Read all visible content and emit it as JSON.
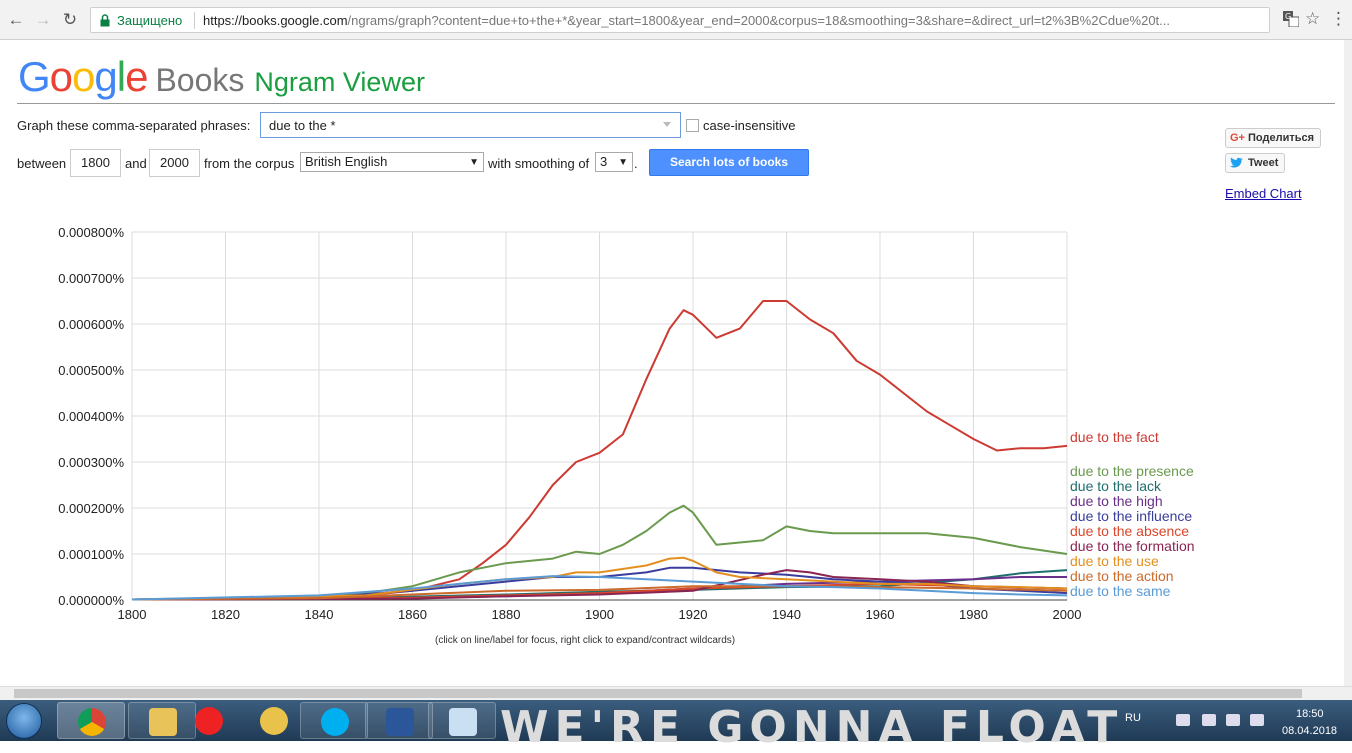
{
  "browser": {
    "secure_label": "Защищено",
    "url_host": "https://books.google.com",
    "url_rest": "/ngrams/graph?content=due+to+the+*&year_start=1800&year_end=2000&corpus=18&smoothing=3&share=&direct_url=t2%3B%2Cdue%20t..."
  },
  "header": {
    "logo_google": "Google",
    "logo_books": "Books",
    "app_name": "Ngram Viewer"
  },
  "form": {
    "phrases_label": "Graph these comma-separated phrases:",
    "phrases_value": "due to the *",
    "case_label": "case-insensitive",
    "between_label": "between",
    "year_start": "1800",
    "and_label": "and",
    "year_end": "2000",
    "corpus_label": "from the corpus",
    "corpus_value": "British English",
    "smoothing_label": "with smoothing of",
    "smoothing_value": "3",
    "period": ".",
    "search_button": "Search lots of books"
  },
  "share": {
    "gplus_label": "Поделиться",
    "tweet_label": "Tweet",
    "embed_label": "Embed Chart"
  },
  "chart_note": "(click on line/label for focus, right click to expand/contract wildcards)",
  "chart_data": {
    "type": "line",
    "title": "",
    "xlabel": "",
    "ylabel": "",
    "xlim": [
      1800,
      2000
    ],
    "ylim": [
      0,
      0.0008
    ],
    "y_unit": "%",
    "x_ticks": [
      "1800",
      "1820",
      "1840",
      "1860",
      "1880",
      "1900",
      "1920",
      "1940",
      "1960",
      "1980",
      "2000"
    ],
    "y_ticks": [
      "0.000000%",
      "0.000100%",
      "0.000200%",
      "0.000300%",
      "0.000400%",
      "0.000500%",
      "0.000600%",
      "0.000700%",
      "0.000800%"
    ],
    "grid": true,
    "legend_placement": "right, at line ends",
    "series": [
      {
        "name": "due to the fact",
        "color": "#cc3a32",
        "x": [
          1800,
          1820,
          1840,
          1850,
          1860,
          1870,
          1875,
          1880,
          1885,
          1890,
          1895,
          1900,
          1905,
          1910,
          1915,
          1918,
          1920,
          1925,
          1930,
          1935,
          1940,
          1945,
          1950,
          1955,
          1960,
          1965,
          1970,
          1975,
          1980,
          1985,
          1990,
          1995,
          2000
        ],
        "y": [
          1e-06,
          2e-06,
          5e-06,
          1e-05,
          2e-05,
          4.5e-05,
          8e-05,
          0.00012,
          0.00018,
          0.00025,
          0.0003,
          0.00032,
          0.00036,
          0.00048,
          0.00059,
          0.00063,
          0.00062,
          0.00057,
          0.00059,
          0.00065,
          0.00065,
          0.00061,
          0.00058,
          0.00052,
          0.00049,
          0.00045,
          0.00041,
          0.00038,
          0.00035,
          0.000325,
          0.00033,
          0.00033,
          0.000335
        ]
      },
      {
        "name": "due to the presence",
        "color": "#6a9a4e",
        "x": [
          1800,
          1840,
          1850,
          1860,
          1870,
          1880,
          1890,
          1895,
          1900,
          1905,
          1910,
          1915,
          1918,
          1920,
          1925,
          1930,
          1935,
          1940,
          1945,
          1950,
          1960,
          1970,
          1980,
          1990,
          2000
        ],
        "y": [
          1e-06,
          5e-06,
          1.5e-05,
          3e-05,
          6e-05,
          8e-05,
          9e-05,
          0.000105,
          0.0001,
          0.00012,
          0.00015,
          0.00019,
          0.000205,
          0.00019,
          0.00012,
          0.000125,
          0.00013,
          0.00016,
          0.00015,
          0.000145,
          0.000145,
          0.000145,
          0.000135,
          0.000115,
          0.0001
        ]
      },
      {
        "name": "due to the lack",
        "color": "#1f6e6e",
        "x": [
          1800,
          1850,
          1880,
          1900,
          1920,
          1940,
          1960,
          1980,
          1990,
          2000
        ],
        "y": [
          1e-06,
          5e-06,
          1.2e-05,
          1.8e-05,
          2.2e-05,
          2.8e-05,
          3e-05,
          4.5e-05,
          5.8e-05,
          6.5e-05
        ]
      },
      {
        "name": "due to the high",
        "color": "#6a2f8a",
        "x": [
          1800,
          1850,
          1880,
          1900,
          1920,
          1940,
          1960,
          1980,
          1990,
          2000
        ],
        "y": [
          1e-06,
          3e-06,
          8e-06,
          1.5e-05,
          2.5e-05,
          3.5e-05,
          4e-05,
          4.5e-05,
          5e-05,
          5e-05
        ]
      },
      {
        "name": "due to the influence",
        "color": "#3a3d9e",
        "x": [
          1800,
          1840,
          1860,
          1880,
          1890,
          1900,
          1910,
          1915,
          1920,
          1930,
          1940,
          1950,
          1960,
          1970,
          1980,
          1990,
          2000
        ],
        "y": [
          1e-06,
          5e-06,
          2e-05,
          4e-05,
          5e-05,
          5e-05,
          6e-05,
          7e-05,
          7e-05,
          6e-05,
          5.5e-05,
          4.5e-05,
          4e-05,
          3.5e-05,
          2.5e-05,
          2e-05,
          1.5e-05
        ]
      },
      {
        "name": "due to the absence",
        "color": "#d9472b",
        "x": [
          1800,
          1860,
          1880,
          1900,
          1920,
          1940,
          1960,
          1980,
          2000
        ],
        "y": [
          1e-06,
          5e-06,
          1e-05,
          1.5e-05,
          2.5e-05,
          3e-05,
          3.5e-05,
          3e-05,
          2.5e-05
        ]
      },
      {
        "name": "due to the formation",
        "color": "#8a2452",
        "x": [
          1800,
          1860,
          1880,
          1900,
          1920,
          1935,
          1940,
          1945,
          1950,
          1960,
          1970,
          1980,
          2000
        ],
        "y": [
          1e-06,
          3e-06,
          8e-06,
          1.2e-05,
          2e-05,
          5.5e-05,
          6.5e-05,
          6e-05,
          5e-05,
          4.5e-05,
          4e-05,
          3e-05,
          2.5e-05
        ]
      },
      {
        "name": "due to the use",
        "color": "#e38f1f",
        "x": [
          1800,
          1850,
          1870,
          1880,
          1890,
          1895,
          1900,
          1910,
          1915,
          1918,
          1920,
          1925,
          1930,
          1940,
          1950,
          1960,
          1970,
          1980,
          1990,
          2000
        ],
        "y": [
          1e-06,
          1e-05,
          3.5e-05,
          4.5e-05,
          5e-05,
          6e-05,
          6e-05,
          7.5e-05,
          9e-05,
          9.2e-05,
          8.5e-05,
          6e-05,
          5e-05,
          4.5e-05,
          4e-05,
          3.5e-05,
          3.5e-05,
          3e-05,
          2.8e-05,
          2.5e-05
        ]
      },
      {
        "name": "due to the action",
        "color": "#cc6a2a",
        "x": [
          1800,
          1840,
          1860,
          1880,
          1900,
          1920,
          1940,
          1960,
          1980,
          2000
        ],
        "y": [
          1e-06,
          4e-06,
          1.2e-05,
          2e-05,
          2.2e-05,
          3e-05,
          3e-05,
          2.8e-05,
          2.5e-05,
          2e-05
        ]
      },
      {
        "name": "due to the same",
        "color": "#5b9bd5",
        "x": [
          1800,
          1840,
          1860,
          1870,
          1880,
          1890,
          1900,
          1910,
          1920,
          1930,
          1940,
          1950,
          1960,
          1970,
          1980,
          1990,
          2000
        ],
        "y": [
          1e-06,
          1e-05,
          2.5e-05,
          3.5e-05,
          4.5e-05,
          5.2e-05,
          5e-05,
          4.5e-05,
          4e-05,
          3.5e-05,
          3e-05,
          2.8e-05,
          2.5e-05,
          2e-05,
          1.5e-05,
          1.2e-05,
          1e-05
        ]
      }
    ]
  },
  "taskbar": {
    "lang": "RU",
    "time": "18:50",
    "date": "08.04.2018",
    "wallpaper_text": "WE'RE GONNA FLOAT"
  },
  "colors": {
    "google_blue": "#4285f4",
    "google_red": "#ea4335",
    "google_yellow": "#fbbc05",
    "google_green": "#34a853",
    "ngram_green": "#1a9e3f",
    "search_button": "#4d90fe"
  }
}
